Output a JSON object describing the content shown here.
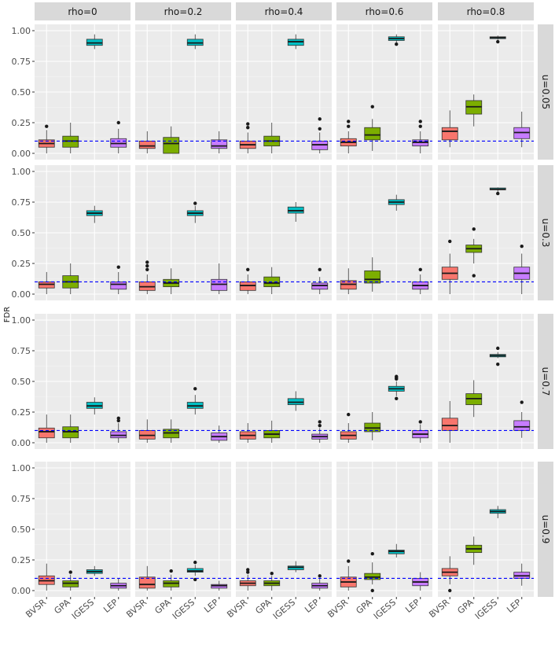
{
  "chart_data": {
    "type": "boxplot",
    "ylabel": "FDR",
    "xlabel": "",
    "ylim": [
      0,
      1
    ],
    "yticks": [
      0,
      0.25,
      0.5,
      0.75,
      1
    ],
    "ytick_labels": [
      "0.00",
      "0.25",
      "0.50",
      "0.75",
      "1.00"
    ],
    "reference_line": 0.1,
    "categories": [
      "BVSR",
      "GPA",
      "IGESS",
      "LEP"
    ],
    "colors": {
      "BVSR": "#F8766D",
      "GPA": "#7CAE00",
      "IGESS": "#00BFC4",
      "LEP": "#C77CFF",
      "reference": "#0000FF"
    },
    "col_labels": [
      "rho=0",
      "rho=0.2",
      "rho=0.4",
      "rho=0.6",
      "rho=0.8"
    ],
    "row_labels": [
      "u=0.05",
      "u=0.3",
      "u=0.7",
      "u=0.9"
    ],
    "panels": [
      [
        [
          {
            "q1": 0.05,
            "median": 0.08,
            "q3": 0.11,
            "lo": 0.0,
            "hi": 0.19,
            "out": [
              0.22
            ]
          },
          {
            "q1": 0.05,
            "median": 0.1,
            "q3": 0.14,
            "lo": 0.0,
            "hi": 0.25,
            "out": []
          },
          {
            "q1": 0.88,
            "median": 0.9,
            "q3": 0.93,
            "lo": 0.85,
            "hi": 0.97,
            "out": []
          },
          {
            "q1": 0.05,
            "median": 0.08,
            "q3": 0.12,
            "lo": 0.0,
            "hi": 0.2,
            "out": [
              0.25
            ]
          }
        ],
        [
          {
            "q1": 0.04,
            "median": 0.06,
            "q3": 0.1,
            "lo": 0.0,
            "hi": 0.18,
            "out": []
          },
          {
            "q1": 0.0,
            "median": 0.08,
            "q3": 0.13,
            "lo": 0.0,
            "hi": 0.22,
            "out": []
          },
          {
            "q1": 0.88,
            "median": 0.9,
            "q3": 0.93,
            "lo": 0.85,
            "hi": 0.97,
            "out": []
          },
          {
            "q1": 0.04,
            "median": 0.06,
            "q3": 0.11,
            "lo": 0.0,
            "hi": 0.18,
            "out": []
          }
        ],
        [
          {
            "q1": 0.04,
            "median": 0.07,
            "q3": 0.1,
            "lo": 0.0,
            "hi": 0.17,
            "out": [
              0.21,
              0.24
            ]
          },
          {
            "q1": 0.06,
            "median": 0.1,
            "q3": 0.14,
            "lo": 0.0,
            "hi": 0.25,
            "out": []
          },
          {
            "q1": 0.88,
            "median": 0.91,
            "q3": 0.93,
            "lo": 0.85,
            "hi": 0.97,
            "out": []
          },
          {
            "q1": 0.03,
            "median": 0.07,
            "q3": 0.1,
            "lo": 0.0,
            "hi": 0.17,
            "out": [
              0.2,
              0.28
            ]
          }
        ],
        [
          {
            "q1": 0.06,
            "median": 0.09,
            "q3": 0.12,
            "lo": 0.0,
            "hi": 0.18,
            "out": [
              0.22,
              0.26
            ]
          },
          {
            "q1": 0.11,
            "median": 0.15,
            "q3": 0.21,
            "lo": 0.02,
            "hi": 0.28,
            "out": [
              0.38
            ]
          },
          {
            "q1": 0.92,
            "median": 0.935,
            "q3": 0.95,
            "lo": 0.9,
            "hi": 0.97,
            "out": [
              0.89
            ]
          },
          {
            "q1": 0.06,
            "median": 0.09,
            "q3": 0.11,
            "lo": 0.0,
            "hi": 0.18,
            "out": [
              0.22,
              0.26
            ]
          }
        ],
        [
          {
            "q1": 0.11,
            "median": 0.18,
            "q3": 0.21,
            "lo": 0.05,
            "hi": 0.35,
            "out": []
          },
          {
            "q1": 0.32,
            "median": 0.38,
            "q3": 0.43,
            "lo": 0.22,
            "hi": 0.48,
            "out": []
          },
          {
            "q1": 0.935,
            "median": 0.943,
            "q3": 0.95,
            "lo": 0.925,
            "hi": 0.96,
            "out": [
              0.91
            ]
          },
          {
            "q1": 0.12,
            "median": 0.17,
            "q3": 0.21,
            "lo": 0.05,
            "hi": 0.34,
            "out": []
          }
        ]
      ],
      [
        [
          {
            "q1": 0.05,
            "median": 0.08,
            "q3": 0.1,
            "lo": 0.0,
            "hi": 0.18,
            "out": []
          },
          {
            "q1": 0.05,
            "median": 0.1,
            "q3": 0.15,
            "lo": 0.0,
            "hi": 0.25,
            "out": []
          },
          {
            "q1": 0.64,
            "median": 0.66,
            "q3": 0.68,
            "lo": 0.58,
            "hi": 0.72,
            "out": []
          },
          {
            "q1": 0.04,
            "median": 0.08,
            "q3": 0.1,
            "lo": 0.0,
            "hi": 0.18,
            "out": [
              0.22
            ]
          }
        ],
        [
          {
            "q1": 0.03,
            "median": 0.06,
            "q3": 0.1,
            "lo": 0.0,
            "hi": 0.16,
            "out": [
              0.2,
              0.23,
              0.26
            ]
          },
          {
            "q1": 0.06,
            "median": 0.09,
            "q3": 0.12,
            "lo": 0.0,
            "hi": 0.21,
            "out": []
          },
          {
            "q1": 0.64,
            "median": 0.66,
            "q3": 0.68,
            "lo": 0.58,
            "hi": 0.72,
            "out": [
              0.74
            ]
          },
          {
            "q1": 0.03,
            "median": 0.08,
            "q3": 0.12,
            "lo": 0.0,
            "hi": 0.25,
            "out": []
          }
        ],
        [
          {
            "q1": 0.03,
            "median": 0.07,
            "q3": 0.1,
            "lo": 0.0,
            "hi": 0.16,
            "out": [
              0.2
            ]
          },
          {
            "q1": 0.06,
            "median": 0.09,
            "q3": 0.14,
            "lo": 0.0,
            "hi": 0.22,
            "out": []
          },
          {
            "q1": 0.66,
            "median": 0.68,
            "q3": 0.71,
            "lo": 0.59,
            "hi": 0.75,
            "out": []
          },
          {
            "q1": 0.04,
            "median": 0.07,
            "q3": 0.09,
            "lo": 0.0,
            "hi": 0.14,
            "out": [
              0.2
            ]
          }
        ],
        [
          {
            "q1": 0.04,
            "median": 0.08,
            "q3": 0.11,
            "lo": 0.0,
            "hi": 0.21,
            "out": []
          },
          {
            "q1": 0.09,
            "median": 0.12,
            "q3": 0.19,
            "lo": 0.02,
            "hi": 0.3,
            "out": []
          },
          {
            "q1": 0.73,
            "median": 0.75,
            "q3": 0.77,
            "lo": 0.68,
            "hi": 0.81,
            "out": []
          },
          {
            "q1": 0.04,
            "median": 0.07,
            "q3": 0.1,
            "lo": 0.0,
            "hi": 0.16,
            "out": [
              0.2
            ]
          }
        ],
        [
          {
            "q1": 0.12,
            "median": 0.17,
            "q3": 0.22,
            "lo": 0.0,
            "hi": 0.33,
            "out": [
              0.43
            ]
          },
          {
            "q1": 0.34,
            "median": 0.37,
            "q3": 0.4,
            "lo": 0.25,
            "hi": 0.45,
            "out": [
              0.15,
              0.53
            ]
          },
          {
            "q1": 0.85,
            "median": 0.855,
            "q3": 0.865,
            "lo": 0.83,
            "hi": 0.87,
            "out": [
              0.82
            ]
          },
          {
            "q1": 0.12,
            "median": 0.17,
            "q3": 0.22,
            "lo": 0.0,
            "hi": 0.33,
            "out": [
              0.39
            ]
          }
        ]
      ],
      [
        [
          {
            "q1": 0.04,
            "median": 0.09,
            "q3": 0.12,
            "lo": 0.0,
            "hi": 0.23,
            "out": []
          },
          {
            "q1": 0.04,
            "median": 0.09,
            "q3": 0.13,
            "lo": 0.0,
            "hi": 0.23,
            "out": []
          },
          {
            "q1": 0.28,
            "median": 0.3,
            "q3": 0.33,
            "lo": 0.23,
            "hi": 0.37,
            "out": []
          },
          {
            "q1": 0.04,
            "median": 0.06,
            "q3": 0.09,
            "lo": 0.0,
            "hi": 0.16,
            "out": [
              0.18,
              0.2
            ]
          }
        ],
        [
          {
            "q1": 0.03,
            "median": 0.06,
            "q3": 0.1,
            "lo": 0.0,
            "hi": 0.19,
            "out": []
          },
          {
            "q1": 0.04,
            "median": 0.08,
            "q3": 0.11,
            "lo": 0.0,
            "hi": 0.19,
            "out": []
          },
          {
            "q1": 0.28,
            "median": 0.3,
            "q3": 0.33,
            "lo": 0.23,
            "hi": 0.39,
            "out": [
              0.44
            ]
          },
          {
            "q1": 0.02,
            "median": 0.05,
            "q3": 0.08,
            "lo": 0.0,
            "hi": 0.14,
            "out": []
          }
        ],
        [
          {
            "q1": 0.03,
            "median": 0.06,
            "q3": 0.09,
            "lo": 0.0,
            "hi": 0.16,
            "out": []
          },
          {
            "q1": 0.04,
            "median": 0.07,
            "q3": 0.1,
            "lo": 0.0,
            "hi": 0.18,
            "out": []
          },
          {
            "q1": 0.31,
            "median": 0.33,
            "q3": 0.36,
            "lo": 0.26,
            "hi": 0.42,
            "out": []
          },
          {
            "q1": 0.03,
            "median": 0.05,
            "q3": 0.07,
            "lo": 0.0,
            "hi": 0.12,
            "out": [
              0.14,
              0.17
            ]
          }
        ],
        [
          {
            "q1": 0.03,
            "median": 0.06,
            "q3": 0.09,
            "lo": 0.0,
            "hi": 0.16,
            "out": [
              0.23
            ]
          },
          {
            "q1": 0.09,
            "median": 0.12,
            "q3": 0.16,
            "lo": 0.02,
            "hi": 0.25,
            "out": []
          },
          {
            "q1": 0.42,
            "median": 0.44,
            "q3": 0.46,
            "lo": 0.38,
            "hi": 0.5,
            "out": [
              0.36,
              0.52,
              0.53,
              0.54
            ]
          },
          {
            "q1": 0.04,
            "median": 0.07,
            "q3": 0.1,
            "lo": 0.0,
            "hi": 0.15,
            "out": [
              0.17
            ]
          }
        ],
        [
          {
            "q1": 0.1,
            "median": 0.14,
            "q3": 0.2,
            "lo": 0.0,
            "hi": 0.34,
            "out": []
          },
          {
            "q1": 0.31,
            "median": 0.36,
            "q3": 0.4,
            "lo": 0.21,
            "hi": 0.51,
            "out": []
          },
          {
            "q1": 0.7,
            "median": 0.71,
            "q3": 0.72,
            "lo": 0.69,
            "hi": 0.74,
            "out": [
              0.64,
              0.77
            ]
          },
          {
            "q1": 0.1,
            "median": 0.13,
            "q3": 0.18,
            "lo": 0.04,
            "hi": 0.25,
            "out": [
              0.33
            ]
          }
        ]
      ],
      [
        [
          {
            "q1": 0.05,
            "median": 0.08,
            "q3": 0.12,
            "lo": 0.0,
            "hi": 0.22,
            "out": []
          },
          {
            "q1": 0.03,
            "median": 0.06,
            "q3": 0.08,
            "lo": 0.0,
            "hi": 0.13,
            "out": [
              0.15
            ]
          },
          {
            "q1": 0.14,
            "median": 0.155,
            "q3": 0.17,
            "lo": 0.12,
            "hi": 0.2,
            "out": []
          },
          {
            "q1": 0.02,
            "median": 0.04,
            "q3": 0.06,
            "lo": 0.0,
            "hi": 0.1,
            "out": []
          }
        ],
        [
          {
            "q1": 0.02,
            "median": 0.05,
            "q3": 0.11,
            "lo": 0.0,
            "hi": 0.2,
            "out": []
          },
          {
            "q1": 0.03,
            "median": 0.06,
            "q3": 0.08,
            "lo": 0.0,
            "hi": 0.13,
            "out": [
              0.16
            ]
          },
          {
            "q1": 0.15,
            "median": 0.16,
            "q3": 0.18,
            "lo": 0.12,
            "hi": 0.21,
            "out": [
              0.09,
              0.23
            ]
          },
          {
            "q1": 0.02,
            "median": 0.04,
            "q3": 0.05,
            "lo": 0.0,
            "hi": 0.08,
            "out": []
          }
        ],
        [
          {
            "q1": 0.04,
            "median": 0.06,
            "q3": 0.08,
            "lo": 0.0,
            "hi": 0.13,
            "out": [
              0.15,
              0.17
            ]
          },
          {
            "q1": 0.04,
            "median": 0.06,
            "q3": 0.08,
            "lo": 0.0,
            "hi": 0.12,
            "out": [
              0.14
            ]
          },
          {
            "q1": 0.17,
            "median": 0.19,
            "q3": 0.2,
            "lo": 0.15,
            "hi": 0.24,
            "out": []
          },
          {
            "q1": 0.02,
            "median": 0.04,
            "q3": 0.06,
            "lo": 0.0,
            "hi": 0.1,
            "out": [
              0.12
            ]
          }
        ],
        [
          {
            "q1": 0.03,
            "median": 0.07,
            "q3": 0.11,
            "lo": 0.0,
            "hi": 0.2,
            "out": [
              0.24
            ]
          },
          {
            "q1": 0.09,
            "median": 0.11,
            "q3": 0.14,
            "lo": 0.05,
            "hi": 0.23,
            "out": [
              0.0,
              0.3
            ]
          },
          {
            "q1": 0.3,
            "median": 0.32,
            "q3": 0.33,
            "lo": 0.27,
            "hi": 0.38,
            "out": []
          },
          {
            "q1": 0.04,
            "median": 0.07,
            "q3": 0.1,
            "lo": 0.0,
            "hi": 0.15,
            "out": []
          }
        ],
        [
          {
            "q1": 0.12,
            "median": 0.15,
            "q3": 0.18,
            "lo": 0.05,
            "hi": 0.28,
            "out": [
              0.0
            ]
          },
          {
            "q1": 0.31,
            "median": 0.34,
            "q3": 0.37,
            "lo": 0.21,
            "hi": 0.44,
            "out": []
          },
          {
            "q1": 0.63,
            "median": 0.645,
            "q3": 0.66,
            "lo": 0.59,
            "hi": 0.69,
            "out": []
          },
          {
            "q1": 0.1,
            "median": 0.12,
            "q3": 0.15,
            "lo": 0.04,
            "hi": 0.22,
            "out": []
          }
        ]
      ]
    ]
  }
}
